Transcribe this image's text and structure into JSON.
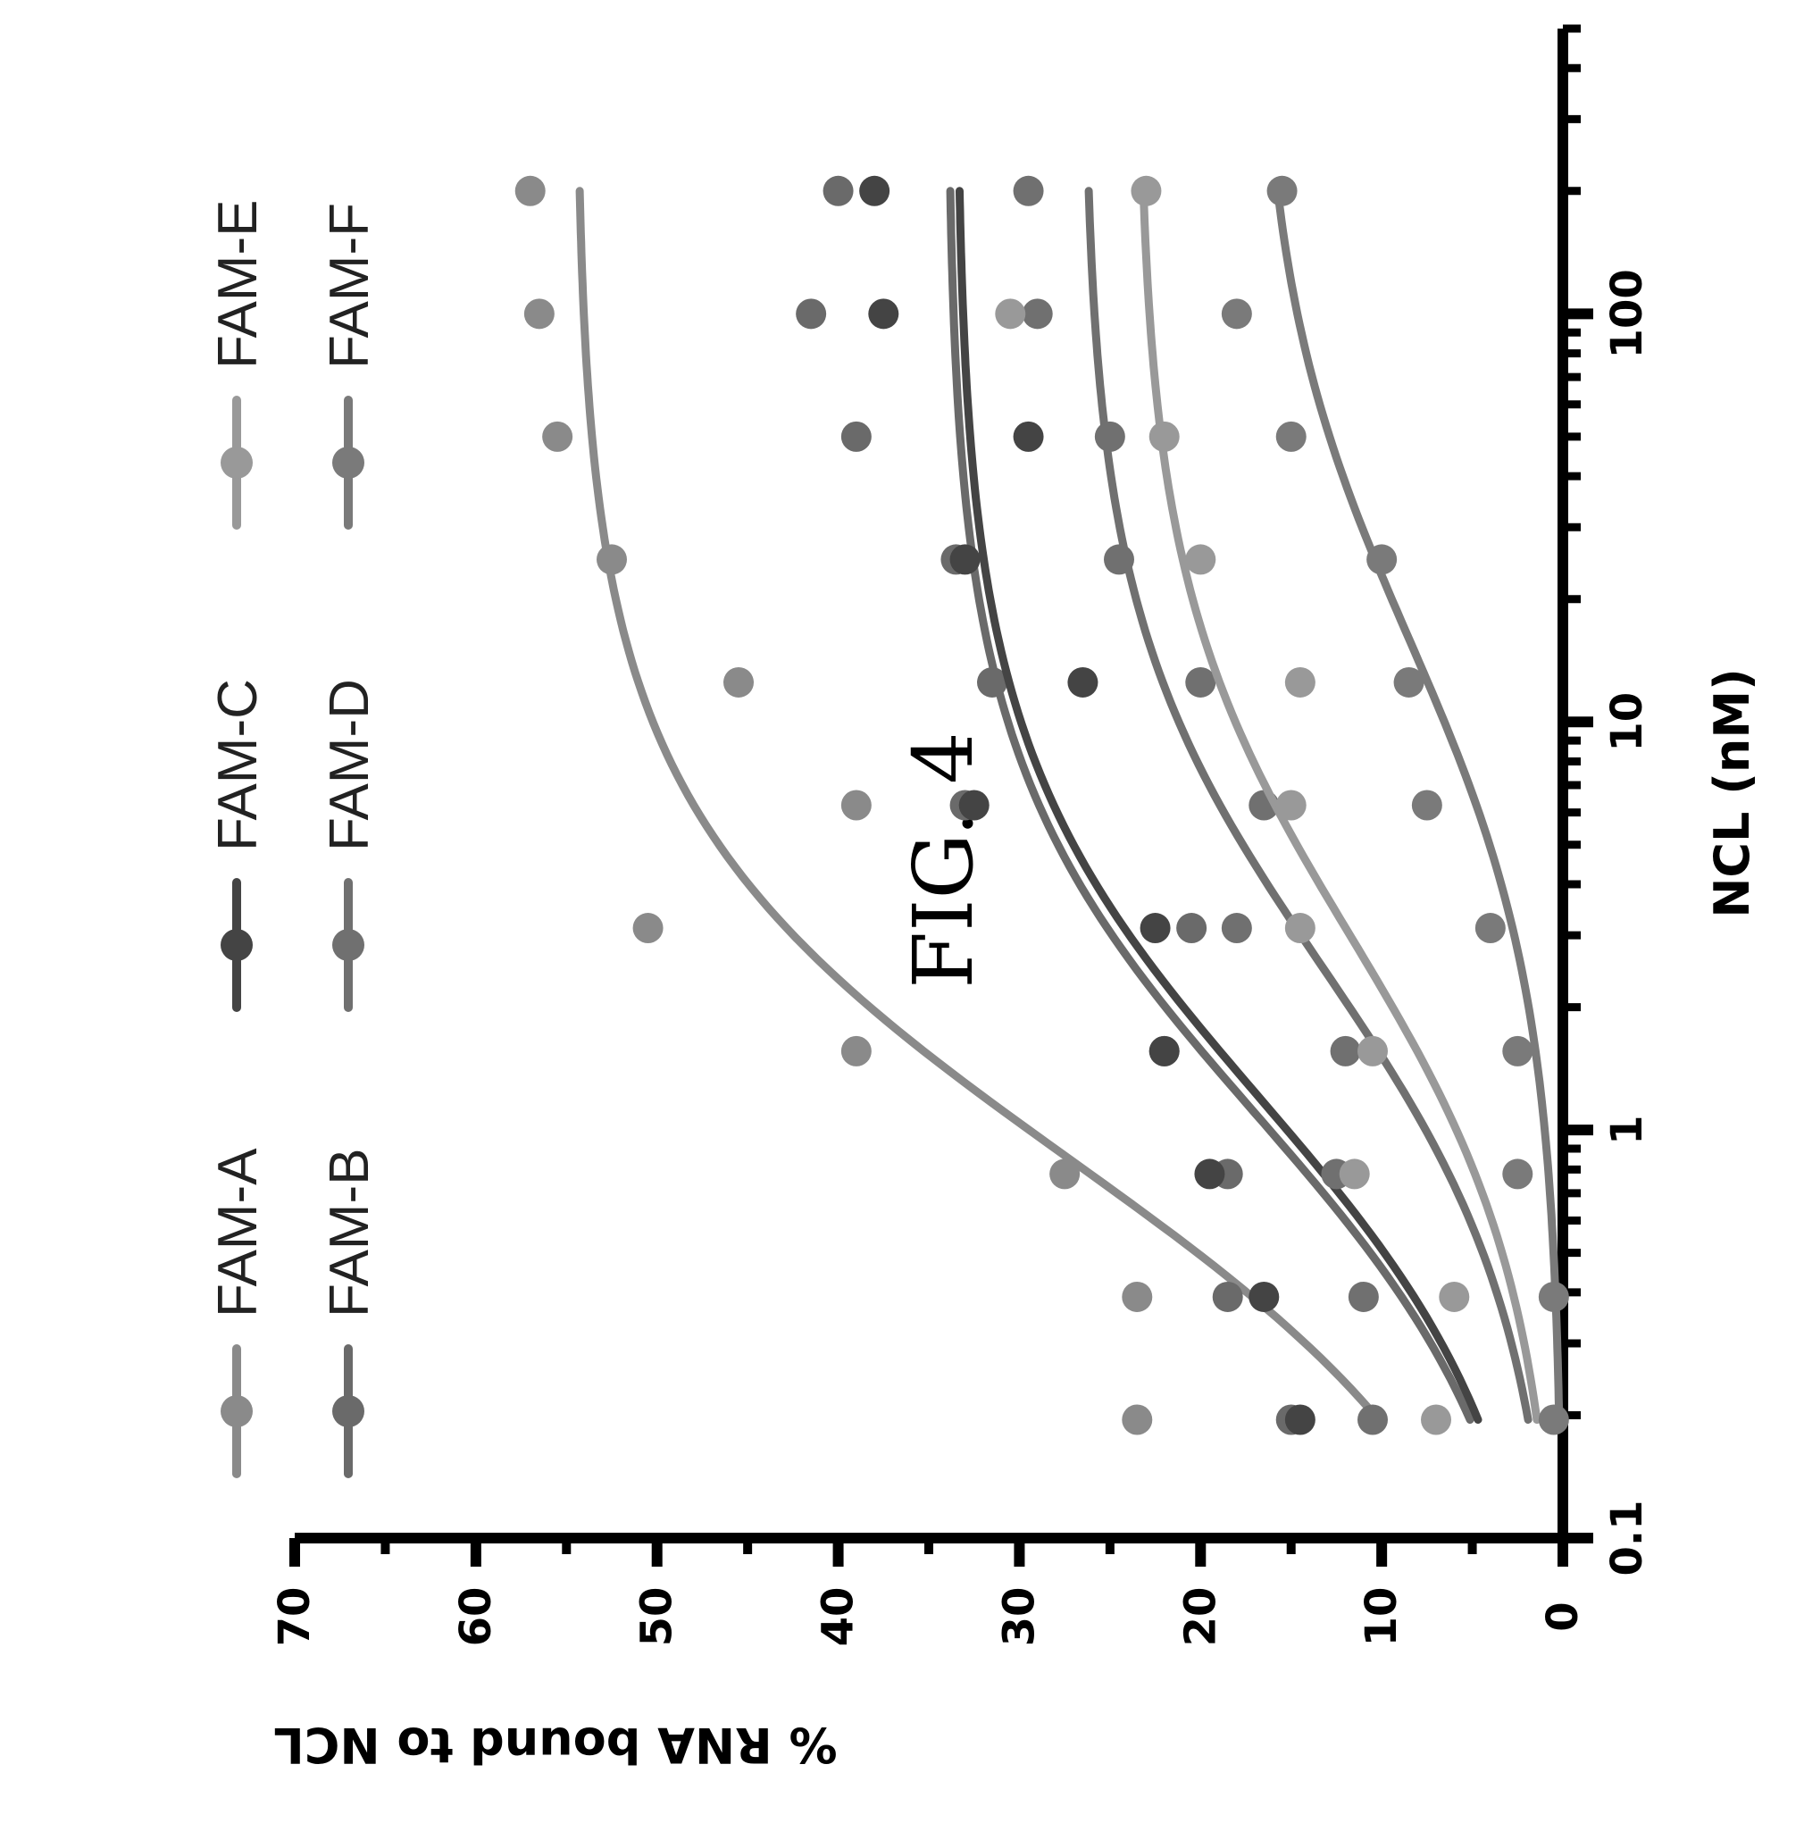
{
  "figure": {
    "title": "FIG. 4"
  },
  "colors": {
    "FAM-A": "#8a8a8a",
    "FAM-B": "#6a6a6a",
    "FAM-C": "#444444",
    "FAM-D": "#707070",
    "FAM-E": "#999999",
    "FAM-F": "#7a7a7a"
  },
  "chart_data": {
    "type": "scatter",
    "xlabel": "NCL (nM)",
    "ylabel": "% RNA bound to NCL",
    "xscale": "log",
    "xlim": [
      0.1,
      500
    ],
    "ylim": [
      0,
      70
    ],
    "x_ticks": [
      "0.1",
      "1",
      "10",
      "100"
    ],
    "y_ticks": [
      "0",
      "10",
      "20",
      "30",
      "40",
      "50",
      "60",
      "70"
    ],
    "legend_position": "top",
    "x": [
      0.195,
      0.39,
      0.78,
      1.56,
      3.125,
      6.25,
      12.5,
      25,
      50,
      100,
      200
    ],
    "series": [
      {
        "name": "FAM-A",
        "values": [
          23.5,
          23.5,
          27.5,
          39,
          50.5,
          39,
          45.5,
          52.5,
          55.5,
          56.5,
          57
        ],
        "fit": {
          "bottom": 0,
          "top": 54.5,
          "kd": 0.85
        }
      },
      {
        "name": "FAM-B",
        "values": [
          15,
          18.5,
          18.5,
          22,
          20.5,
          33,
          31.5,
          33.5,
          39,
          41.5,
          40
        ],
        "fit": {
          "bottom": 0,
          "top": 34,
          "kd": 1.1
        }
      },
      {
        "name": "FAM-C",
        "values": [
          14.5,
          16.5,
          19.5,
          22,
          22.5,
          32.5,
          26.5,
          33,
          29.5,
          37.5,
          38
        ],
        "fit": {
          "bottom": 0,
          "top": 33.5,
          "kd": 1.2
        }
      },
      {
        "name": "FAM-D",
        "values": [
          10.5,
          11,
          12.5,
          12,
          18,
          16.5,
          20,
          24.5,
          25,
          29,
          29.5
        ],
        "fit": {
          "bottom": 0,
          "top": 26.5,
          "kd": 2.5
        }
      },
      {
        "name": "FAM-E",
        "values": [
          7,
          6,
          11.5,
          10.5,
          14.5,
          15,
          14.5,
          20,
          22,
          30.5,
          23
        ],
        "fit": {
          "bottom": 0,
          "top": 23.5,
          "kd": 3.0
        }
      },
      {
        "name": "FAM-F",
        "values": [
          0.5,
          0.5,
          2.5,
          2.5,
          4,
          7.5,
          8.5,
          10,
          15,
          18,
          15.5
        ],
        "fit": {
          "bottom": 0,
          "top": 17,
          "kd": 16
        }
      }
    ]
  }
}
